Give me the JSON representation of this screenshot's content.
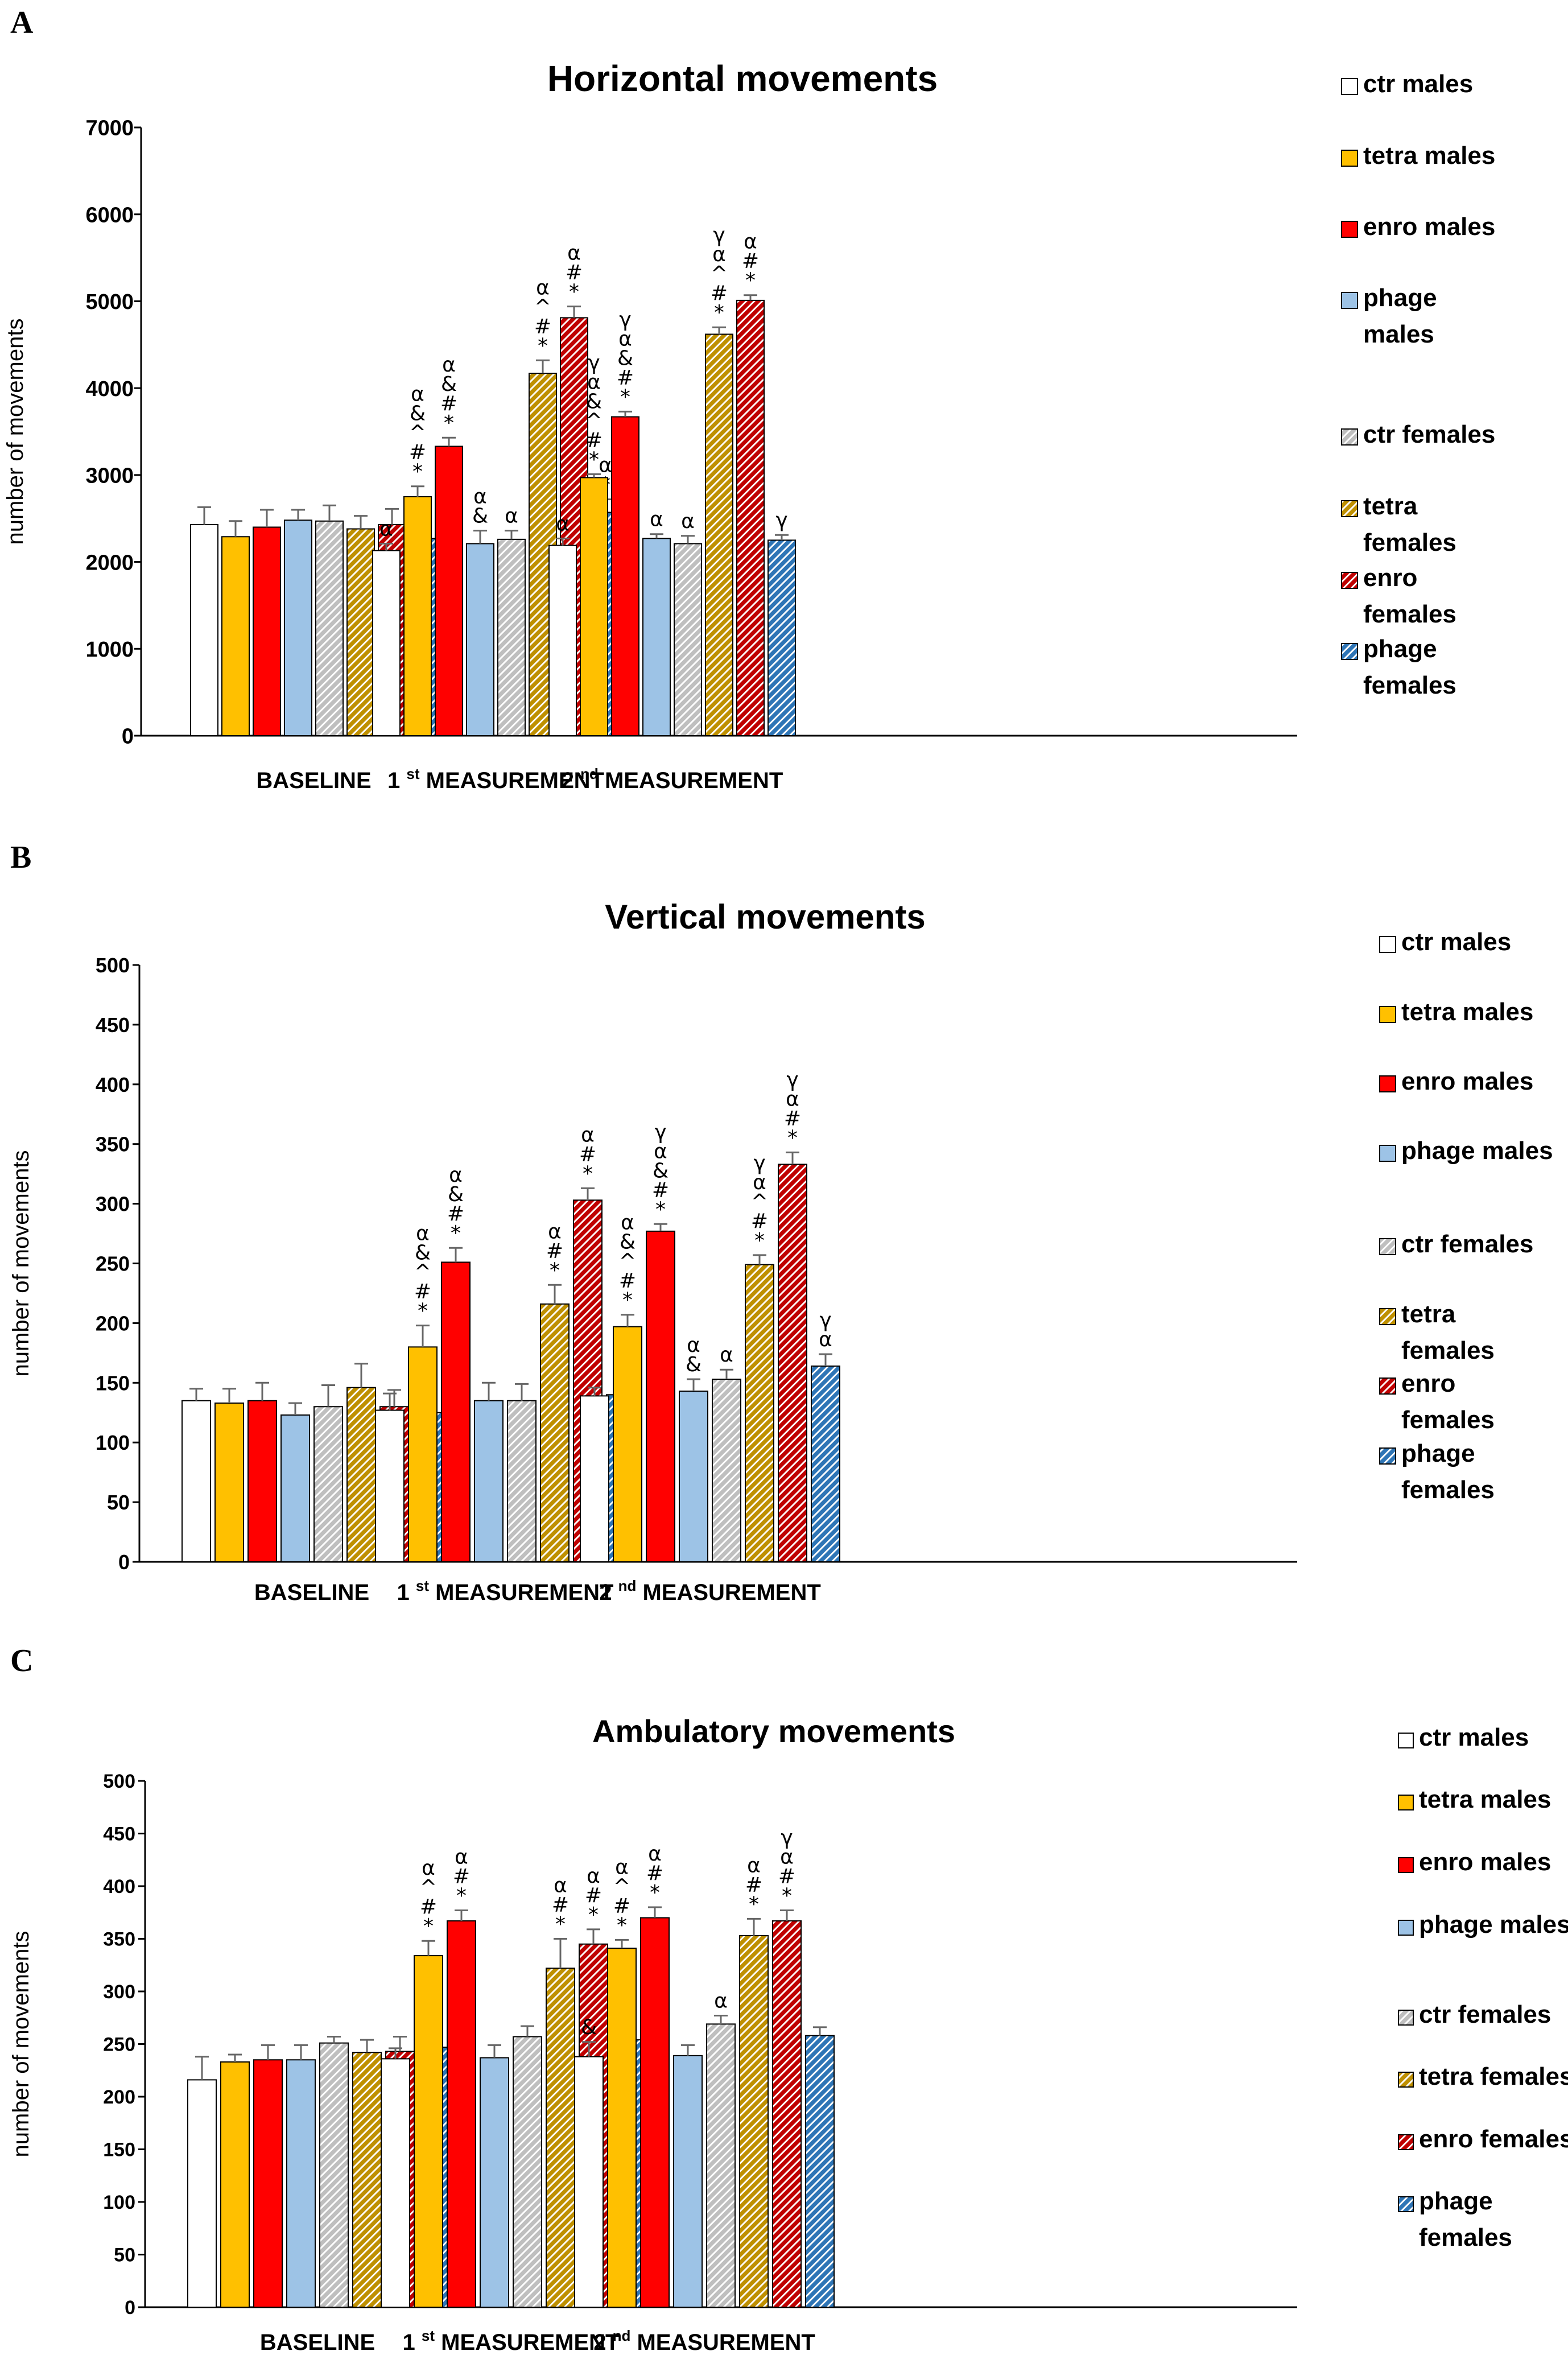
{
  "chart_data": [
    {
      "type": "bar",
      "panel": "A",
      "title": "Horizontal movements",
      "xlabel": "",
      "ylabel": "number of movements",
      "ylim": [
        0,
        7000
      ],
      "yticks": [
        0,
        1000,
        2000,
        3000,
        4000,
        5000,
        6000,
        7000
      ],
      "categories": [
        "BASELINE",
        "1 st MEASUREMENT",
        "2 nd MEASUREMENT"
      ],
      "group_labels": [
        {
          "pre": "",
          "sup": "",
          "post": "BASELINE"
        },
        {
          "pre": "1 ",
          "sup": "st",
          "post": " MEASUREMENT"
        },
        {
          "pre": "2 ",
          "sup": "nd",
          "post": " MEASUREMENT"
        }
      ],
      "legend": [
        "ctr males",
        "tetra males",
        "enro males",
        "phage males",
        "ctr females",
        "tetra females",
        "enro females",
        "phage females"
      ],
      "legend_lines": [
        [
          "ctr males"
        ],
        [
          "tetra males"
        ],
        [
          "enro males"
        ],
        [
          "phage",
          "males"
        ],
        [
          "ctr females"
        ],
        [
          "tetra",
          "females"
        ],
        [
          "enro",
          "females"
        ],
        [
          "phage",
          "females"
        ]
      ],
      "bars": [
        {
          "group": 0,
          "series": 0,
          "value": 2430,
          "err": 200,
          "sig": []
        },
        {
          "group": 0,
          "series": 1,
          "value": 2290,
          "err": 180,
          "sig": []
        },
        {
          "group": 0,
          "series": 2,
          "value": 2400,
          "err": 200,
          "sig": []
        },
        {
          "group": 0,
          "series": 3,
          "value": 2480,
          "err": 120,
          "sig": []
        },
        {
          "group": 0,
          "series": 4,
          "value": 2470,
          "err": 180,
          "sig": []
        },
        {
          "group": 0,
          "series": 5,
          "value": 2380,
          "err": 150,
          "sig": []
        },
        {
          "group": 0,
          "series": 6,
          "value": 2430,
          "err": 180,
          "sig": []
        },
        {
          "group": 0,
          "series": 7,
          "value": 2270,
          "err": 120,
          "sig": []
        },
        {
          "group": 1,
          "series": 0,
          "value": 2130,
          "err": 80,
          "sig": [
            "α"
          ]
        },
        {
          "group": 1,
          "series": 1,
          "value": 2750,
          "err": 120,
          "sig": [
            "α",
            "&",
            "^",
            "#",
            "*"
          ]
        },
        {
          "group": 1,
          "series": 2,
          "value": 3330,
          "err": 100,
          "sig": [
            "α",
            "&",
            "#",
            "*"
          ]
        },
        {
          "group": 1,
          "series": 3,
          "value": 2210,
          "err": 150,
          "sig": [
            "α",
            "&"
          ]
        },
        {
          "group": 1,
          "series": 4,
          "value": 2260,
          "err": 100,
          "sig": [
            "α"
          ]
        },
        {
          "group": 1,
          "series": 5,
          "value": 4170,
          "err": 150,
          "sig": [
            "α",
            "^",
            "#",
            "*"
          ]
        },
        {
          "group": 1,
          "series": 6,
          "value": 4810,
          "err": 130,
          "sig": [
            "α",
            "#",
            "*"
          ]
        },
        {
          "group": 1,
          "series": 7,
          "value": 2570,
          "err": 150,
          "sig": [
            "α",
            "*"
          ]
        },
        {
          "group": 2,
          "series": 0,
          "value": 2190,
          "err": 80,
          "sig": [
            "α"
          ]
        },
        {
          "group": 2,
          "series": 1,
          "value": 2970,
          "err": 40,
          "sig": [
            "γ",
            "α",
            "&",
            "^",
            "#",
            "*"
          ]
        },
        {
          "group": 2,
          "series": 2,
          "value": 3670,
          "err": 60,
          "sig": [
            "γ",
            "α",
            "&",
            "#",
            "*"
          ]
        },
        {
          "group": 2,
          "series": 3,
          "value": 2270,
          "err": 50,
          "sig": [
            "α"
          ]
        },
        {
          "group": 2,
          "series": 4,
          "value": 2210,
          "err": 90,
          "sig": [
            "α"
          ]
        },
        {
          "group": 2,
          "series": 5,
          "value": 4620,
          "err": 80,
          "sig": [
            "γ",
            "α",
            "^",
            "#",
            "*"
          ]
        },
        {
          "group": 2,
          "series": 6,
          "value": 5010,
          "err": 60,
          "sig": [
            "α",
            "#",
            "*"
          ]
        },
        {
          "group": 2,
          "series": 7,
          "value": 2250,
          "err": 60,
          "sig": [
            "γ"
          ]
        }
      ]
    },
    {
      "type": "bar",
      "panel": "B",
      "title": "Vertical movements",
      "xlabel": "",
      "ylabel": "number of movements",
      "ylim": [
        0,
        500
      ],
      "yticks": [
        0,
        50,
        100,
        150,
        200,
        250,
        300,
        350,
        400,
        450,
        500
      ],
      "categories": [
        "BASELINE",
        "1 st MEASUREMENT",
        "2 nd MEASUREMENT"
      ],
      "group_labels": [
        {
          "pre": "",
          "sup": "",
          "post": "BASELINE"
        },
        {
          "pre": "1 ",
          "sup": "st",
          "post": " MEASUREMENT"
        },
        {
          "pre": "2 ",
          "sup": "nd",
          "post": " MEASUREMENT"
        }
      ],
      "legend": [
        "ctr males",
        "tetra males",
        "enro males",
        "phage males",
        "ctr females",
        "tetra females",
        "enro females",
        "phage females"
      ],
      "legend_lines": [
        [
          "ctr males"
        ],
        [
          "tetra males"
        ],
        [
          "enro males"
        ],
        [
          "phage males"
        ],
        [
          "ctr females"
        ],
        [
          "tetra",
          "females"
        ],
        [
          "enro",
          "females"
        ],
        [
          "phage",
          "females"
        ]
      ],
      "bars": [
        {
          "group": 0,
          "series": 0,
          "value": 135,
          "err": 10,
          "sig": []
        },
        {
          "group": 0,
          "series": 1,
          "value": 133,
          "err": 12,
          "sig": []
        },
        {
          "group": 0,
          "series": 2,
          "value": 135,
          "err": 15,
          "sig": []
        },
        {
          "group": 0,
          "series": 3,
          "value": 123,
          "err": 10,
          "sig": []
        },
        {
          "group": 0,
          "series": 4,
          "value": 130,
          "err": 18,
          "sig": []
        },
        {
          "group": 0,
          "series": 5,
          "value": 146,
          "err": 20,
          "sig": []
        },
        {
          "group": 0,
          "series": 6,
          "value": 130,
          "err": 14,
          "sig": []
        },
        {
          "group": 0,
          "series": 7,
          "value": 125,
          "err": 14,
          "sig": []
        },
        {
          "group": 1,
          "series": 0,
          "value": 127,
          "err": 14,
          "sig": []
        },
        {
          "group": 1,
          "series": 1,
          "value": 180,
          "err": 18,
          "sig": [
            "α",
            "&",
            "^",
            "#",
            "*"
          ]
        },
        {
          "group": 1,
          "series": 2,
          "value": 251,
          "err": 12,
          "sig": [
            "α",
            "&",
            "#",
            "*"
          ]
        },
        {
          "group": 1,
          "series": 3,
          "value": 135,
          "err": 15,
          "sig": []
        },
        {
          "group": 1,
          "series": 4,
          "value": 135,
          "err": 14,
          "sig": []
        },
        {
          "group": 1,
          "series": 5,
          "value": 216,
          "err": 16,
          "sig": [
            "α",
            "#",
            "*"
          ]
        },
        {
          "group": 1,
          "series": 6,
          "value": 303,
          "err": 10,
          "sig": [
            "α",
            "#",
            "*"
          ]
        },
        {
          "group": 1,
          "series": 7,
          "value": 140,
          "err": 10,
          "sig": []
        },
        {
          "group": 2,
          "series": 0,
          "value": 139,
          "err": 7,
          "sig": []
        },
        {
          "group": 2,
          "series": 1,
          "value": 197,
          "err": 10,
          "sig": [
            "α",
            "&",
            "^",
            "#",
            "*"
          ]
        },
        {
          "group": 2,
          "series": 2,
          "value": 277,
          "err": 6,
          "sig": [
            "γ",
            "α",
            "&",
            "#",
            "*"
          ]
        },
        {
          "group": 2,
          "series": 3,
          "value": 143,
          "err": 10,
          "sig": [
            "α",
            "&"
          ]
        },
        {
          "group": 2,
          "series": 4,
          "value": 153,
          "err": 8,
          "sig": [
            "α"
          ]
        },
        {
          "group": 2,
          "series": 5,
          "value": 249,
          "err": 8,
          "sig": [
            "γ",
            "α",
            "^",
            "#",
            "*"
          ]
        },
        {
          "group": 2,
          "series": 6,
          "value": 333,
          "err": 10,
          "sig": [
            "γ",
            "α",
            "#",
            "*"
          ]
        },
        {
          "group": 2,
          "series": 7,
          "value": 164,
          "err": 10,
          "sig": [
            "γ",
            "α"
          ]
        }
      ]
    },
    {
      "type": "bar",
      "panel": "C",
      "title": "Ambulatory movements",
      "xlabel": "",
      "ylabel": "number of movements",
      "ylim": [
        0,
        500
      ],
      "yticks": [
        0,
        50,
        100,
        150,
        200,
        250,
        300,
        350,
        400,
        450,
        500
      ],
      "categories": [
        "BASELINE",
        "1 st MEASUREMENT",
        "2 nd MEASUREMENT"
      ],
      "group_labels": [
        {
          "pre": "",
          "sup": "",
          "post": "BASELINE"
        },
        {
          "pre": "1 ",
          "sup": "st",
          "post": " MEASUREMENT"
        },
        {
          "pre": "2 ",
          "sup": "nd",
          "post": " MEASUREMENT"
        }
      ],
      "legend": [
        "ctr males",
        "tetra males",
        "enro males",
        "phage males",
        "ctr females",
        "tetra females",
        "enro females",
        "phage females"
      ],
      "legend_lines": [
        [
          "ctr males"
        ],
        [
          "tetra males"
        ],
        [
          "enro males"
        ],
        [
          "phage males"
        ],
        [
          "ctr females"
        ],
        [
          "tetra females"
        ],
        [
          "enro females"
        ],
        [
          "phage",
          "females"
        ]
      ],
      "bars": [
        {
          "group": 0,
          "series": 0,
          "value": 216,
          "err": 22,
          "sig": []
        },
        {
          "group": 0,
          "series": 1,
          "value": 233,
          "err": 7,
          "sig": []
        },
        {
          "group": 0,
          "series": 2,
          "value": 235,
          "err": 14,
          "sig": []
        },
        {
          "group": 0,
          "series": 3,
          "value": 235,
          "err": 14,
          "sig": []
        },
        {
          "group": 0,
          "series": 4,
          "value": 251,
          "err": 6,
          "sig": []
        },
        {
          "group": 0,
          "series": 5,
          "value": 242,
          "err": 12,
          "sig": []
        },
        {
          "group": 0,
          "series": 6,
          "value": 243,
          "err": 14,
          "sig": []
        },
        {
          "group": 0,
          "series": 7,
          "value": 247,
          "err": 10,
          "sig": []
        },
        {
          "group": 1,
          "series": 0,
          "value": 236,
          "err": 10,
          "sig": []
        },
        {
          "group": 1,
          "series": 1,
          "value": 334,
          "err": 14,
          "sig": [
            "α",
            "^",
            "#",
            "*"
          ]
        },
        {
          "group": 1,
          "series": 2,
          "value": 367,
          "err": 10,
          "sig": [
            "α",
            "#",
            "*"
          ]
        },
        {
          "group": 1,
          "series": 3,
          "value": 237,
          "err": 12,
          "sig": []
        },
        {
          "group": 1,
          "series": 4,
          "value": 257,
          "err": 10,
          "sig": []
        },
        {
          "group": 1,
          "series": 5,
          "value": 322,
          "err": 28,
          "sig": [
            "α",
            "#",
            "*"
          ]
        },
        {
          "group": 1,
          "series": 6,
          "value": 345,
          "err": 14,
          "sig": [
            "α",
            "#",
            "*"
          ]
        },
        {
          "group": 1,
          "series": 7,
          "value": 254,
          "err": 8,
          "sig": []
        },
        {
          "group": 2,
          "series": 0,
          "value": 238,
          "err": 14,
          "sig": [
            "&"
          ]
        },
        {
          "group": 2,
          "series": 1,
          "value": 341,
          "err": 8,
          "sig": [
            "α",
            "^",
            "#",
            "*"
          ]
        },
        {
          "group": 2,
          "series": 2,
          "value": 370,
          "err": 10,
          "sig": [
            "α",
            "#",
            "*"
          ]
        },
        {
          "group": 2,
          "series": 3,
          "value": 239,
          "err": 10,
          "sig": []
        },
        {
          "group": 2,
          "series": 4,
          "value": 269,
          "err": 8,
          "sig": [
            "α"
          ]
        },
        {
          "group": 2,
          "series": 5,
          "value": 353,
          "err": 16,
          "sig": [
            "α",
            "#",
            "*"
          ]
        },
        {
          "group": 2,
          "series": 6,
          "value": 367,
          "err": 10,
          "sig": [
            "γ",
            "α",
            "#",
            "*"
          ]
        },
        {
          "group": 2,
          "series": 7,
          "value": 258,
          "err": 8,
          "sig": []
        }
      ]
    }
  ],
  "series_styles": [
    {
      "name": "ctr males",
      "fill": "#ffffff",
      "hatch": false
    },
    {
      "name": "tetra males",
      "fill": "#ffc000",
      "hatch": false
    },
    {
      "name": "enro males",
      "fill": "#ff0000",
      "hatch": false
    },
    {
      "name": "phage males",
      "fill": "#9dc3e6",
      "hatch": false
    },
    {
      "name": "ctr females",
      "fill": "#bfbfbf",
      "hatch": true
    },
    {
      "name": "tetra females",
      "fill": "#bf9000",
      "hatch": true
    },
    {
      "name": "enro females",
      "fill": "#c00000",
      "hatch": true
    },
    {
      "name": "phage females",
      "fill": "#2e75b6",
      "hatch": true
    }
  ]
}
